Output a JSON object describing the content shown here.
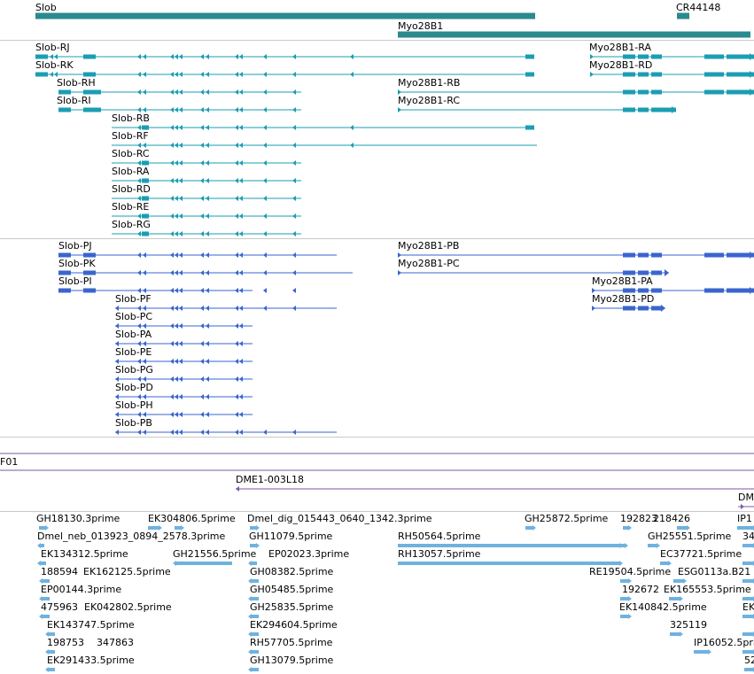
{
  "colors": {
    "gene": "#2a8a8e",
    "mrna": "#1b9db3",
    "protein": "#3a66cc",
    "clone": "#7a5aa6",
    "est": "#6fb2df",
    "separator": "#c9c9c9"
  },
  "gene_track": {
    "labels": [
      "Slob",
      "CR44148",
      "Myo28B1"
    ]
  },
  "mrna_track": {
    "labels": [
      "Slob-RJ",
      "Myo28B1-RA",
      "Slob-RK",
      "Myo28B1-RD",
      "Slob-RH",
      "Myo28B1-RB",
      "Slob-RI",
      "Myo28B1-RC",
      "Slob-RB",
      "Slob-RF",
      "Slob-RC",
      "Slob-RA",
      "Slob-RD",
      "Slob-RE",
      "Slob-RG"
    ]
  },
  "protein_track": {
    "labels": [
      "Slob-PJ",
      "Myo28B1-PB",
      "Slob-PK",
      "Myo28B1-PC",
      "Slob-PI",
      "Myo28B1-PA",
      "Slob-PF",
      "Myo28B1-PD",
      "Slob-PC",
      "Slob-PA",
      "Slob-PE",
      "Slob-PG",
      "Slob-PD",
      "Slob-PH",
      "Slob-PB"
    ]
  },
  "clone_track": {
    "labels": [
      "F01",
      "DME1-003L18",
      "DM"
    ]
  },
  "est_track": {
    "labels": [
      "GH18130.3prime",
      "EK304806.5prime",
      "Dmel_dig_015443_0640_1342.3prime",
      "GH25872.5prime",
      "192823",
      "218426",
      "IP1",
      "Dmel_neb_013923_0894_2578.3prime",
      "GH11079.5prime",
      "RH50564.5prime",
      "GH25551.5prime",
      "34",
      "EK134312.5prime",
      "GH21556.5prime",
      "EP02023.3prime",
      "RH13057.5prime",
      "EC37721.5prime",
      "188594",
      "EK162125.5prime",
      "GH08382.5prime",
      "RE19504.5prime",
      "ESG0113a.B21",
      "EP00144.3prime",
      "GH05485.5prime",
      "192672",
      "EK165553.5prime",
      "475963",
      "EK042802.5prime",
      "GH25835.5prime",
      "EK140842.5prime",
      "EK",
      "EK143747.5prime",
      "EK294604.5prime",
      "325119",
      "198753",
      "347863",
      "RH57705.5prime",
      "IP16052.5prime",
      "EK291433.5prime",
      "GH13079.5prime",
      "52"
    ]
  }
}
